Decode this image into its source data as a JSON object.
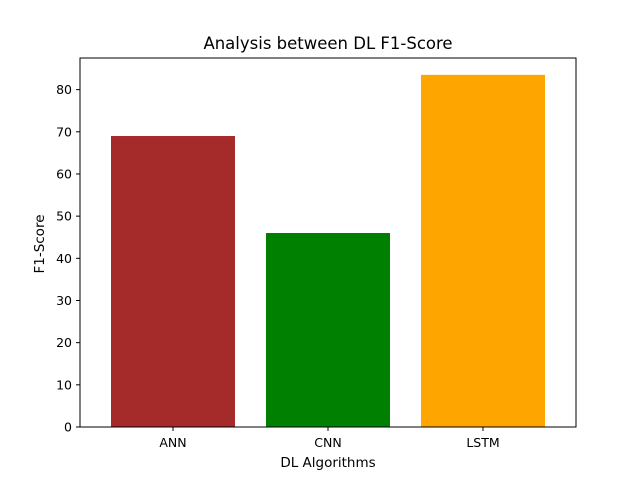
{
  "chart_data": {
    "type": "bar",
    "title": "Analysis between DL F1-Score",
    "xlabel": "DL Algorithms",
    "ylabel": "F1-Score",
    "categories": [
      "ANN",
      "CNN",
      "LSTM"
    ],
    "values": [
      69,
      46,
      83.5
    ],
    "colors": [
      "#a52a2a",
      "#008000",
      "#ffa500"
    ],
    "ylim": [
      0,
      87.5
    ],
    "yticks": [
      0,
      10,
      20,
      30,
      40,
      50,
      60,
      70,
      80
    ],
    "grid": false,
    "legend": "none"
  }
}
